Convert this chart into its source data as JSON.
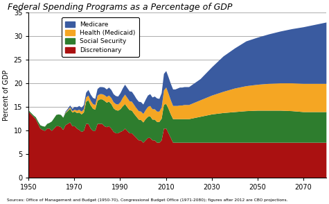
{
  "title": "Federal Spending Programs as a Percentage of GDP",
  "ylabel": "Percent of GDP",
  "source_text": "Sources: Office of Management and Budget (1950-70), Congressional Budget Office (1971-2080); figures after 2012 are CBO projections.",
  "xlim": [
    1950,
    2080
  ],
  "ylim": [
    0,
    35
  ],
  "yticks": [
    0,
    5,
    10,
    15,
    20,
    25,
    30,
    35
  ],
  "xticks": [
    1950,
    1970,
    1990,
    2010,
    2030,
    2050,
    2070
  ],
  "colors": {
    "discretionary": "#AA1111",
    "social_security": "#2E7D2E",
    "medicaid": "#F5A623",
    "medicare": "#3A5BA0"
  },
  "legend": [
    "Medicare",
    "Health (Medicaid)",
    "Social Security",
    "Discretionary"
  ],
  "years": [
    1950,
    1951,
    1952,
    1953,
    1954,
    1955,
    1956,
    1957,
    1958,
    1959,
    1960,
    1961,
    1962,
    1963,
    1964,
    1965,
    1966,
    1967,
    1968,
    1969,
    1970,
    1971,
    1972,
    1973,
    1974,
    1975,
    1976,
    1977,
    1978,
    1979,
    1980,
    1981,
    1982,
    1983,
    1984,
    1985,
    1986,
    1987,
    1988,
    1989,
    1990,
    1991,
    1992,
    1993,
    1994,
    1995,
    1996,
    1997,
    1998,
    1999,
    2000,
    2001,
    2002,
    2003,
    2004,
    2005,
    2006,
    2007,
    2008,
    2009,
    2010,
    2011,
    2012,
    2013,
    2014,
    2015,
    2016,
    2017,
    2018,
    2019,
    2020,
    2025,
    2030,
    2035,
    2040,
    2045,
    2050,
    2055,
    2060,
    2065,
    2070,
    2075,
    2080
  ],
  "discretionary": [
    14.0,
    13.5,
    13.0,
    12.5,
    11.5,
    10.5,
    10.2,
    10.0,
    10.5,
    10.5,
    10.0,
    10.5,
    11.0,
    11.0,
    10.8,
    10.2,
    11.2,
    11.5,
    11.8,
    11.0,
    11.0,
    10.5,
    10.2,
    9.8,
    10.0,
    11.5,
    11.5,
    10.5,
    10.0,
    10.0,
    11.5,
    11.5,
    11.5,
    11.0,
    10.8,
    11.0,
    10.5,
    9.8,
    9.5,
    9.5,
    9.8,
    10.0,
    10.5,
    10.0,
    9.5,
    9.5,
    9.0,
    8.5,
    8.0,
    8.0,
    7.5,
    8.0,
    8.5,
    8.5,
    8.0,
    8.0,
    7.5,
    7.5,
    8.0,
    10.5,
    10.5,
    9.5,
    8.5,
    7.5,
    7.5,
    7.5,
    7.5,
    7.5,
    7.5,
    7.5,
    7.5,
    7.5,
    7.5,
    7.5,
    7.5,
    7.5,
    7.5,
    7.5,
    7.5,
    7.5,
    7.5,
    7.5,
    7.5
  ],
  "social_security": [
    0.3,
    0.3,
    0.3,
    0.4,
    0.5,
    0.7,
    0.8,
    0.9,
    1.0,
    1.2,
    2.0,
    2.2,
    2.4,
    2.5,
    2.6,
    2.6,
    2.6,
    2.7,
    2.9,
    2.9,
    3.1,
    3.3,
    3.7,
    3.7,
    3.9,
    4.7,
    5.0,
    4.9,
    4.7,
    4.5,
    4.9,
    5.2,
    5.2,
    5.4,
    5.2,
    5.2,
    5.2,
    5.0,
    4.9,
    4.8,
    4.8,
    5.2,
    5.2,
    5.0,
    4.9,
    4.8,
    4.6,
    4.5,
    4.4,
    4.3,
    4.3,
    4.5,
    4.5,
    4.6,
    4.4,
    4.4,
    4.4,
    4.4,
    4.6,
    5.1,
    5.2,
    5.2,
    5.0,
    5.0,
    5.0,
    5.0,
    5.0,
    5.0,
    5.0,
    5.0,
    5.0,
    5.5,
    6.0,
    6.3,
    6.5,
    6.7,
    6.8,
    6.8,
    6.8,
    6.7,
    6.5,
    6.5,
    6.5
  ],
  "medicaid": [
    0.0,
    0.0,
    0.0,
    0.0,
    0.0,
    0.0,
    0.0,
    0.0,
    0.0,
    0.0,
    0.0,
    0.0,
    0.0,
    0.0,
    0.0,
    0.0,
    0.1,
    0.2,
    0.3,
    0.3,
    0.4,
    0.5,
    0.6,
    0.6,
    0.7,
    0.9,
    1.0,
    1.0,
    1.0,
    1.0,
    1.1,
    1.1,
    1.1,
    1.2,
    1.2,
    1.3,
    1.3,
    1.3,
    1.3,
    1.3,
    1.5,
    1.8,
    2.0,
    2.0,
    1.9,
    1.9,
    1.9,
    1.8,
    1.8,
    1.8,
    1.8,
    1.9,
    2.1,
    2.2,
    2.2,
    2.2,
    2.2,
    2.2,
    2.4,
    3.0,
    3.5,
    3.2,
    3.0,
    2.8,
    2.8,
    2.8,
    2.9,
    2.9,
    3.0,
    3.0,
    3.0,
    3.5,
    4.0,
    4.5,
    5.0,
    5.3,
    5.5,
    5.7,
    5.8,
    5.9,
    6.0,
    6.0,
    6.0
  ],
  "medicare": [
    0.0,
    0.0,
    0.0,
    0.0,
    0.0,
    0.0,
    0.0,
    0.0,
    0.0,
    0.0,
    0.0,
    0.0,
    0.0,
    0.0,
    0.0,
    0.0,
    0.2,
    0.3,
    0.4,
    0.5,
    0.6,
    0.7,
    0.8,
    0.8,
    0.9,
    1.0,
    1.2,
    1.3,
    1.3,
    1.3,
    1.4,
    1.5,
    1.5,
    1.6,
    1.6,
    1.7,
    1.7,
    1.7,
    1.7,
    1.7,
    1.9,
    2.0,
    2.1,
    2.1,
    2.1,
    2.1,
    2.1,
    2.0,
    2.0,
    2.0,
    2.0,
    2.2,
    2.4,
    2.5,
    2.5,
    2.7,
    2.8,
    2.7,
    3.0,
    3.5,
    3.5,
    3.5,
    3.5,
    3.5,
    3.5,
    3.7,
    3.8,
    3.8,
    3.8,
    3.8,
    3.8,
    4.5,
    6.0,
    7.5,
    8.5,
    9.5,
    10.0,
    10.5,
    11.0,
    11.5,
    12.0,
    12.5,
    13.0
  ]
}
